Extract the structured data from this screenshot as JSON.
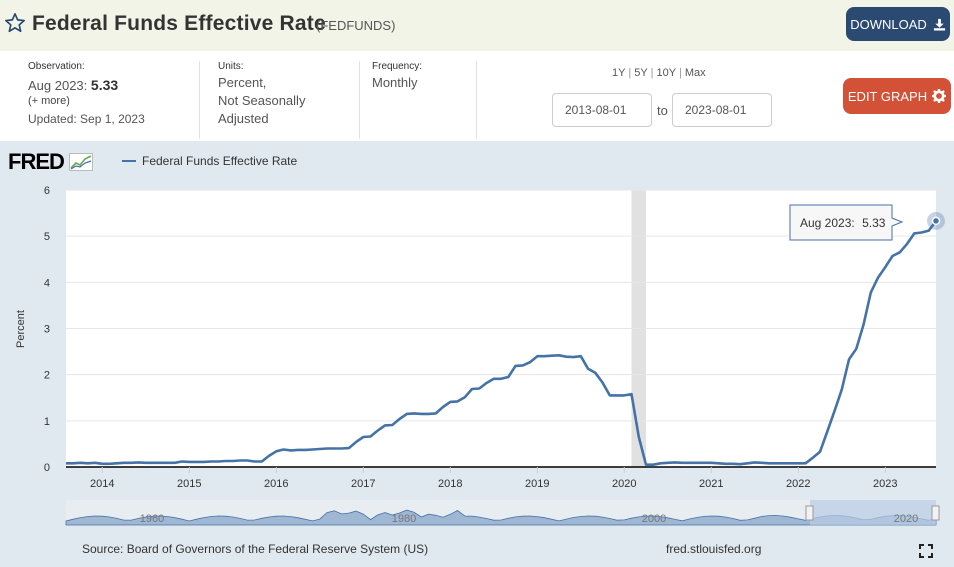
{
  "header": {
    "title": "Federal Funds Effective Rate",
    "series_id": "(FEDFUNDS)",
    "download_label": "DOWNLOAD"
  },
  "meta": {
    "observation_label": "Observation:",
    "observation_period": "Aug 2023:",
    "observation_value": "5.33",
    "more_label": "(+ more)",
    "updated": "Updated: Sep 1, 2023",
    "units_label": "Units:",
    "units_line1": "Percent,",
    "units_line2": "Not Seasonally",
    "units_line3": "Adjusted",
    "frequency_label": "Frequency:",
    "frequency_value": "Monthly"
  },
  "range": {
    "links": [
      "1Y",
      "5Y",
      "10Y",
      "Max"
    ],
    "start": "2013-08-01",
    "to_label": "to",
    "end": "2023-08-01"
  },
  "edit_label": "EDIT GRAPH",
  "footer": {
    "source": "Source: Board of Governors of the Federal Reserve System (US)",
    "url": "fred.stlouisfed.org"
  },
  "logo_text": "FRED",
  "colors": {
    "series": "#4572a7",
    "download_bg": "#2b4a72",
    "edit_bg": "#d35237",
    "recession": "#e1e1e1",
    "graph_bg": "#e1e9f0"
  },
  "chart_data": {
    "type": "line",
    "ylabel": "Percent",
    "ylim": [
      0,
      6
    ],
    "yticks": [
      0,
      1,
      2,
      3,
      4,
      5,
      6
    ],
    "xlim": [
      "2013-08",
      "2023-08"
    ],
    "xticks": [
      "2014",
      "2015",
      "2016",
      "2017",
      "2018",
      "2019",
      "2020",
      "2021",
      "2022",
      "2023"
    ],
    "grid": true,
    "legend_position": "top-left",
    "recession_shading": [
      [
        "2020-02",
        "2020-04"
      ]
    ],
    "tooltip": {
      "label": "Aug 2023:",
      "value": "5.33"
    },
    "navigator_labels": [
      "1960",
      "1980",
      "2000",
      "2020"
    ],
    "series": [
      {
        "name": "Federal Funds Effective Rate",
        "x": [
          "2013-08",
          "2013-09",
          "2013-10",
          "2013-11",
          "2013-12",
          "2014-01",
          "2014-02",
          "2014-03",
          "2014-04",
          "2014-05",
          "2014-06",
          "2014-07",
          "2014-08",
          "2014-09",
          "2014-10",
          "2014-11",
          "2014-12",
          "2015-01",
          "2015-02",
          "2015-03",
          "2015-04",
          "2015-05",
          "2015-06",
          "2015-07",
          "2015-08",
          "2015-09",
          "2015-10",
          "2015-11",
          "2015-12",
          "2016-01",
          "2016-02",
          "2016-03",
          "2016-04",
          "2016-05",
          "2016-06",
          "2016-07",
          "2016-08",
          "2016-09",
          "2016-10",
          "2016-11",
          "2016-12",
          "2017-01",
          "2017-02",
          "2017-03",
          "2017-04",
          "2017-05",
          "2017-06",
          "2017-07",
          "2017-08",
          "2017-09",
          "2017-10",
          "2017-11",
          "2017-12",
          "2018-01",
          "2018-02",
          "2018-03",
          "2018-04",
          "2018-05",
          "2018-06",
          "2018-07",
          "2018-08",
          "2018-09",
          "2018-10",
          "2018-11",
          "2018-12",
          "2019-01",
          "2019-02",
          "2019-03",
          "2019-04",
          "2019-05",
          "2019-06",
          "2019-07",
          "2019-08",
          "2019-09",
          "2019-10",
          "2019-11",
          "2019-12",
          "2020-01",
          "2020-02",
          "2020-03",
          "2020-04",
          "2020-05",
          "2020-06",
          "2020-07",
          "2020-08",
          "2020-09",
          "2020-10",
          "2020-11",
          "2020-12",
          "2021-01",
          "2021-02",
          "2021-03",
          "2021-04",
          "2021-05",
          "2021-06",
          "2021-07",
          "2021-08",
          "2021-09",
          "2021-10",
          "2021-11",
          "2021-12",
          "2022-01",
          "2022-02",
          "2022-03",
          "2022-04",
          "2022-05",
          "2022-06",
          "2022-07",
          "2022-08",
          "2022-09",
          "2022-10",
          "2022-11",
          "2022-12",
          "2023-01",
          "2023-02",
          "2023-03",
          "2023-04",
          "2023-05",
          "2023-06",
          "2023-07",
          "2023-08"
        ],
        "values": [
          0.08,
          0.08,
          0.09,
          0.08,
          0.09,
          0.07,
          0.07,
          0.08,
          0.09,
          0.09,
          0.1,
          0.09,
          0.09,
          0.09,
          0.09,
          0.09,
          0.12,
          0.11,
          0.11,
          0.11,
          0.12,
          0.12,
          0.13,
          0.13,
          0.14,
          0.14,
          0.12,
          0.12,
          0.24,
          0.34,
          0.38,
          0.36,
          0.37,
          0.37,
          0.38,
          0.39,
          0.4,
          0.4,
          0.4,
          0.41,
          0.54,
          0.65,
          0.66,
          0.79,
          0.9,
          0.91,
          1.04,
          1.15,
          1.16,
          1.15,
          1.15,
          1.16,
          1.3,
          1.41,
          1.42,
          1.51,
          1.69,
          1.7,
          1.82,
          1.91,
          1.91,
          1.95,
          2.19,
          2.2,
          2.27,
          2.4,
          2.4,
          2.41,
          2.42,
          2.39,
          2.38,
          2.4,
          2.13,
          2.04,
          1.83,
          1.55,
          1.55,
          1.55,
          1.58,
          0.65,
          0.05,
          0.05,
          0.08,
          0.09,
          0.1,
          0.09,
          0.09,
          0.09,
          0.09,
          0.09,
          0.08,
          0.07,
          0.07,
          0.06,
          0.08,
          0.1,
          0.09,
          0.08,
          0.08,
          0.08,
          0.08,
          0.08,
          0.08,
          0.2,
          0.33,
          0.77,
          1.21,
          1.68,
          2.33,
          2.56,
          3.08,
          3.78,
          4.1,
          4.33,
          4.57,
          4.65,
          4.83,
          5.06,
          5.08,
          5.12,
          5.33
        ]
      }
    ]
  }
}
